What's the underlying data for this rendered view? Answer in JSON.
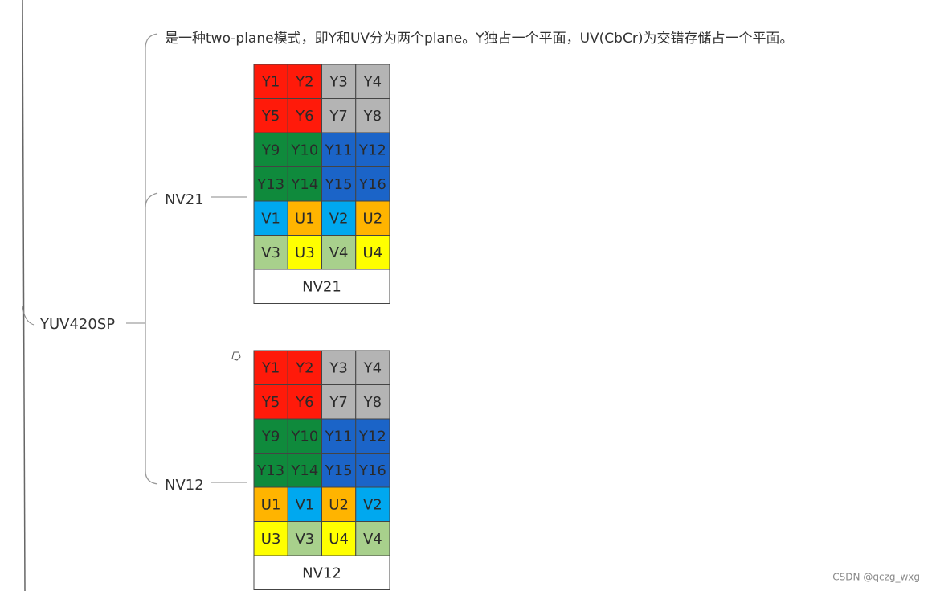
{
  "root": "YUV420SP",
  "description": "是一种two-plane模式，即Y和UV分为两个plane。Y独占一个平面，UV(CbCr)为交错存储占一个平面。",
  "nodes": [
    {
      "label": "NV21",
      "caption": "NV21",
      "cells": [
        [
          "Y1",
          "Y2",
          "Y3",
          "Y4"
        ],
        [
          "Y5",
          "Y6",
          "Y7",
          "Y8"
        ],
        [
          "Y9",
          "Y10",
          "Y11",
          "Y12"
        ],
        [
          "Y13",
          "Y14",
          "Y15",
          "Y16"
        ],
        [
          "V1",
          "U1",
          "V2",
          "U2"
        ],
        [
          "V3",
          "U3",
          "V4",
          "U4"
        ]
      ],
      "colors": [
        [
          "#ff1a0a",
          "#ff1a0a",
          "#b4b4b4",
          "#b4b4b4"
        ],
        [
          "#ff1a0a",
          "#ff1a0a",
          "#b4b4b4",
          "#b4b4b4"
        ],
        [
          "#0f8a3c",
          "#0f8a3c",
          "#1b64c8",
          "#1b64c8"
        ],
        [
          "#0f8a3c",
          "#0f8a3c",
          "#1b64c8",
          "#1b64c8"
        ],
        [
          "#00a8ef",
          "#ffb400",
          "#00a8ef",
          "#ffb400"
        ],
        [
          "#a8d08c",
          "#ffff00",
          "#a8d08c",
          "#ffff00"
        ]
      ]
    },
    {
      "label": "NV12",
      "caption": "NV12",
      "cells": [
        [
          "Y1",
          "Y2",
          "Y3",
          "Y4"
        ],
        [
          "Y5",
          "Y6",
          "Y7",
          "Y8"
        ],
        [
          "Y9",
          "Y10",
          "Y11",
          "Y12"
        ],
        [
          "Y13",
          "Y14",
          "Y15",
          "Y16"
        ],
        [
          "U1",
          "V1",
          "U2",
          "V2"
        ],
        [
          "U3",
          "V3",
          "U4",
          "V4"
        ]
      ],
      "colors": [
        [
          "#ff1a0a",
          "#ff1a0a",
          "#b4b4b4",
          "#b4b4b4"
        ],
        [
          "#ff1a0a",
          "#ff1a0a",
          "#b4b4b4",
          "#b4b4b4"
        ],
        [
          "#0f8a3c",
          "#0f8a3c",
          "#1b64c8",
          "#1b64c8"
        ],
        [
          "#0f8a3c",
          "#0f8a3c",
          "#1b64c8",
          "#1b64c8"
        ],
        [
          "#ffb400",
          "#00a8ef",
          "#ffb400",
          "#00a8ef"
        ],
        [
          "#ffff00",
          "#a8d08c",
          "#ffff00",
          "#a8d08c"
        ]
      ]
    }
  ],
  "watermark": "CSDN @qczg_wxg"
}
